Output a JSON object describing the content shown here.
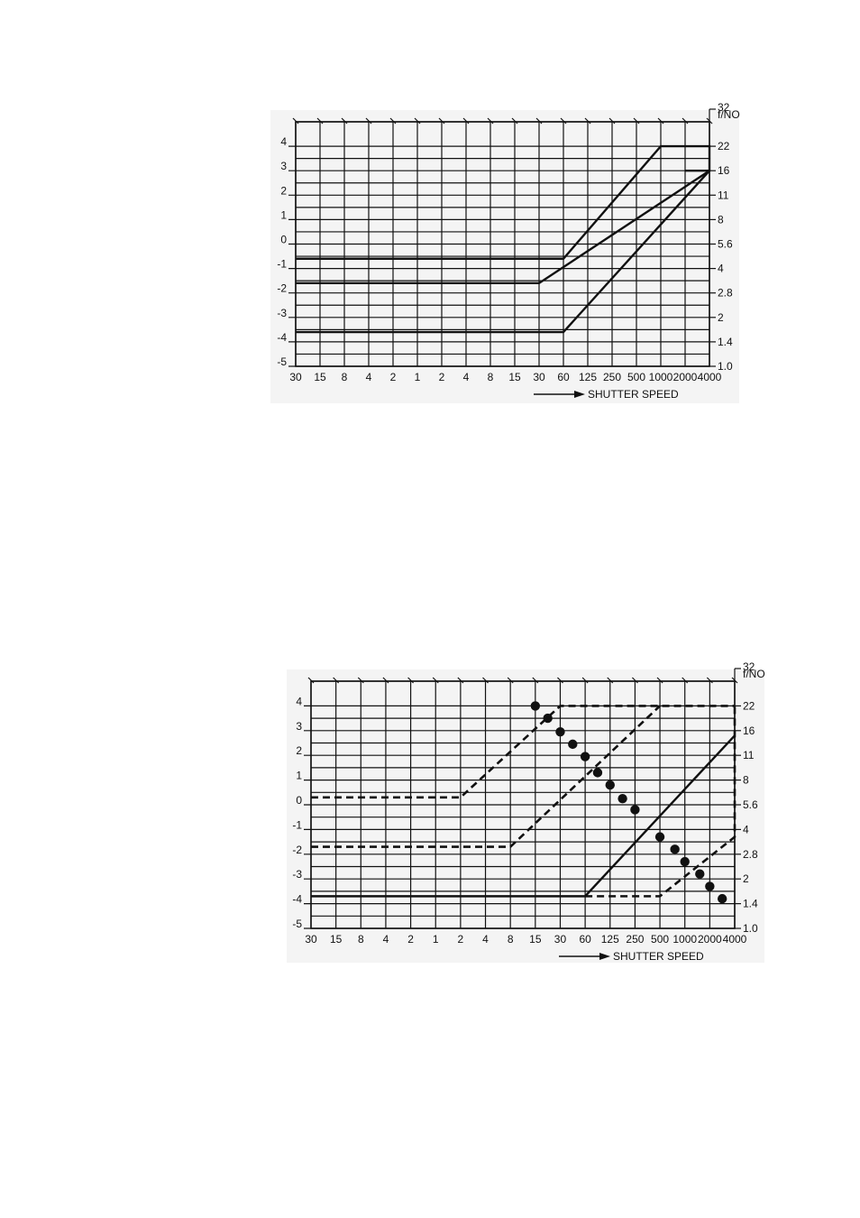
{
  "chart_data": [
    {
      "type": "line",
      "title": "",
      "x_tick_labels": [
        "30",
        "15",
        "8",
        "4",
        "2",
        "1",
        "2",
        "4",
        "8",
        "15",
        "30",
        "60",
        "125",
        "250",
        "500",
        "1000",
        "2000",
        "4000"
      ],
      "left_tick_labels": [
        "4",
        "3",
        "2",
        "1",
        "0",
        "-1",
        "-2",
        "-3",
        "-4",
        "-5"
      ],
      "right_tick_labels": [
        "32",
        "22",
        "16",
        "11",
        "8",
        "5.6",
        "4",
        "2.8",
        "2",
        "1.4",
        "1.0"
      ],
      "right_axis_label": "f/NO",
      "xlabel": "SHUTTER SPEED",
      "ylim": [
        -5,
        4
      ],
      "right_ylim": [
        "1.0",
        "32"
      ],
      "x_scale": "stops (log2 of exposure time), 30 s to 1/4000 s",
      "series": [
        {
          "style": "solid",
          "x": [
            "30",
            "30",
            "60",
            "1000",
            "4000",
            "4000",
            "2000"
          ],
          "y": [
            -0.6,
            -0.6,
            -0.6,
            4,
            4,
            3,
            3
          ]
        },
        {
          "style": "solid",
          "x": [
            "30",
            "30",
            "4000"
          ],
          "y": [
            -1.6,
            -1.6,
            3.0
          ]
        },
        {
          "style": "solid",
          "x": [
            "30",
            "60",
            "4000"
          ],
          "y": [
            -3.6,
            -3.6,
            3.0
          ]
        }
      ]
    },
    {
      "type": "line",
      "title": "",
      "x_tick_labels": [
        "30",
        "15",
        "8",
        "4",
        "2",
        "1",
        "2",
        "4",
        "8",
        "15",
        "30",
        "60",
        "125",
        "250",
        "500",
        "1000",
        "2000",
        "4000"
      ],
      "left_tick_labels": [
        "4",
        "3",
        "2",
        "1",
        "0",
        "-1",
        "-2",
        "-3",
        "-4",
        "-5"
      ],
      "right_tick_labels": [
        "32",
        "22",
        "16",
        "11",
        "8",
        "5.6",
        "4",
        "2.8",
        "2",
        "1.4",
        "1.0"
      ],
      "right_axis_label": "f/NO",
      "xlabel": "SHUTTER SPEED",
      "ylim": [
        -5,
        4
      ],
      "right_ylim": [
        "1.0",
        "32"
      ],
      "x_scale": "stops (log2 of exposure time), 30 s to 1/4000 s",
      "series": [
        {
          "style": "dashed",
          "x": [
            "30",
            "2",
            "30",
            "4000"
          ],
          "y": [
            0.3,
            0.3,
            4,
            4
          ]
        },
        {
          "style": "dashed",
          "x": [
            "30",
            "8",
            "500"
          ],
          "y": [
            -1.7,
            -1.7,
            4
          ]
        },
        {
          "style": "solid",
          "x": [
            "30",
            "60",
            "4000"
          ],
          "y": [
            -3.7,
            -3.7,
            2.8
          ]
        },
        {
          "style": "dashed",
          "x": [
            "60",
            "500",
            "4000",
            "4000"
          ],
          "y": [
            -3.7,
            -3.7,
            -1.3,
            4
          ]
        },
        {
          "style": "markers",
          "x": [
            "15",
            "22",
            "30",
            "45",
            "60",
            "90",
            "125",
            "180",
            "250",
            "500",
            "750",
            "1000",
            "1500",
            "2000",
            "2800"
          ],
          "y": [
            4.0,
            3.5,
            2.95,
            2.45,
            1.95,
            1.3,
            0.8,
            0.25,
            -0.2,
            -1.3,
            -1.8,
            -2.3,
            -2.8,
            -3.3,
            -3.8
          ]
        }
      ]
    }
  ]
}
